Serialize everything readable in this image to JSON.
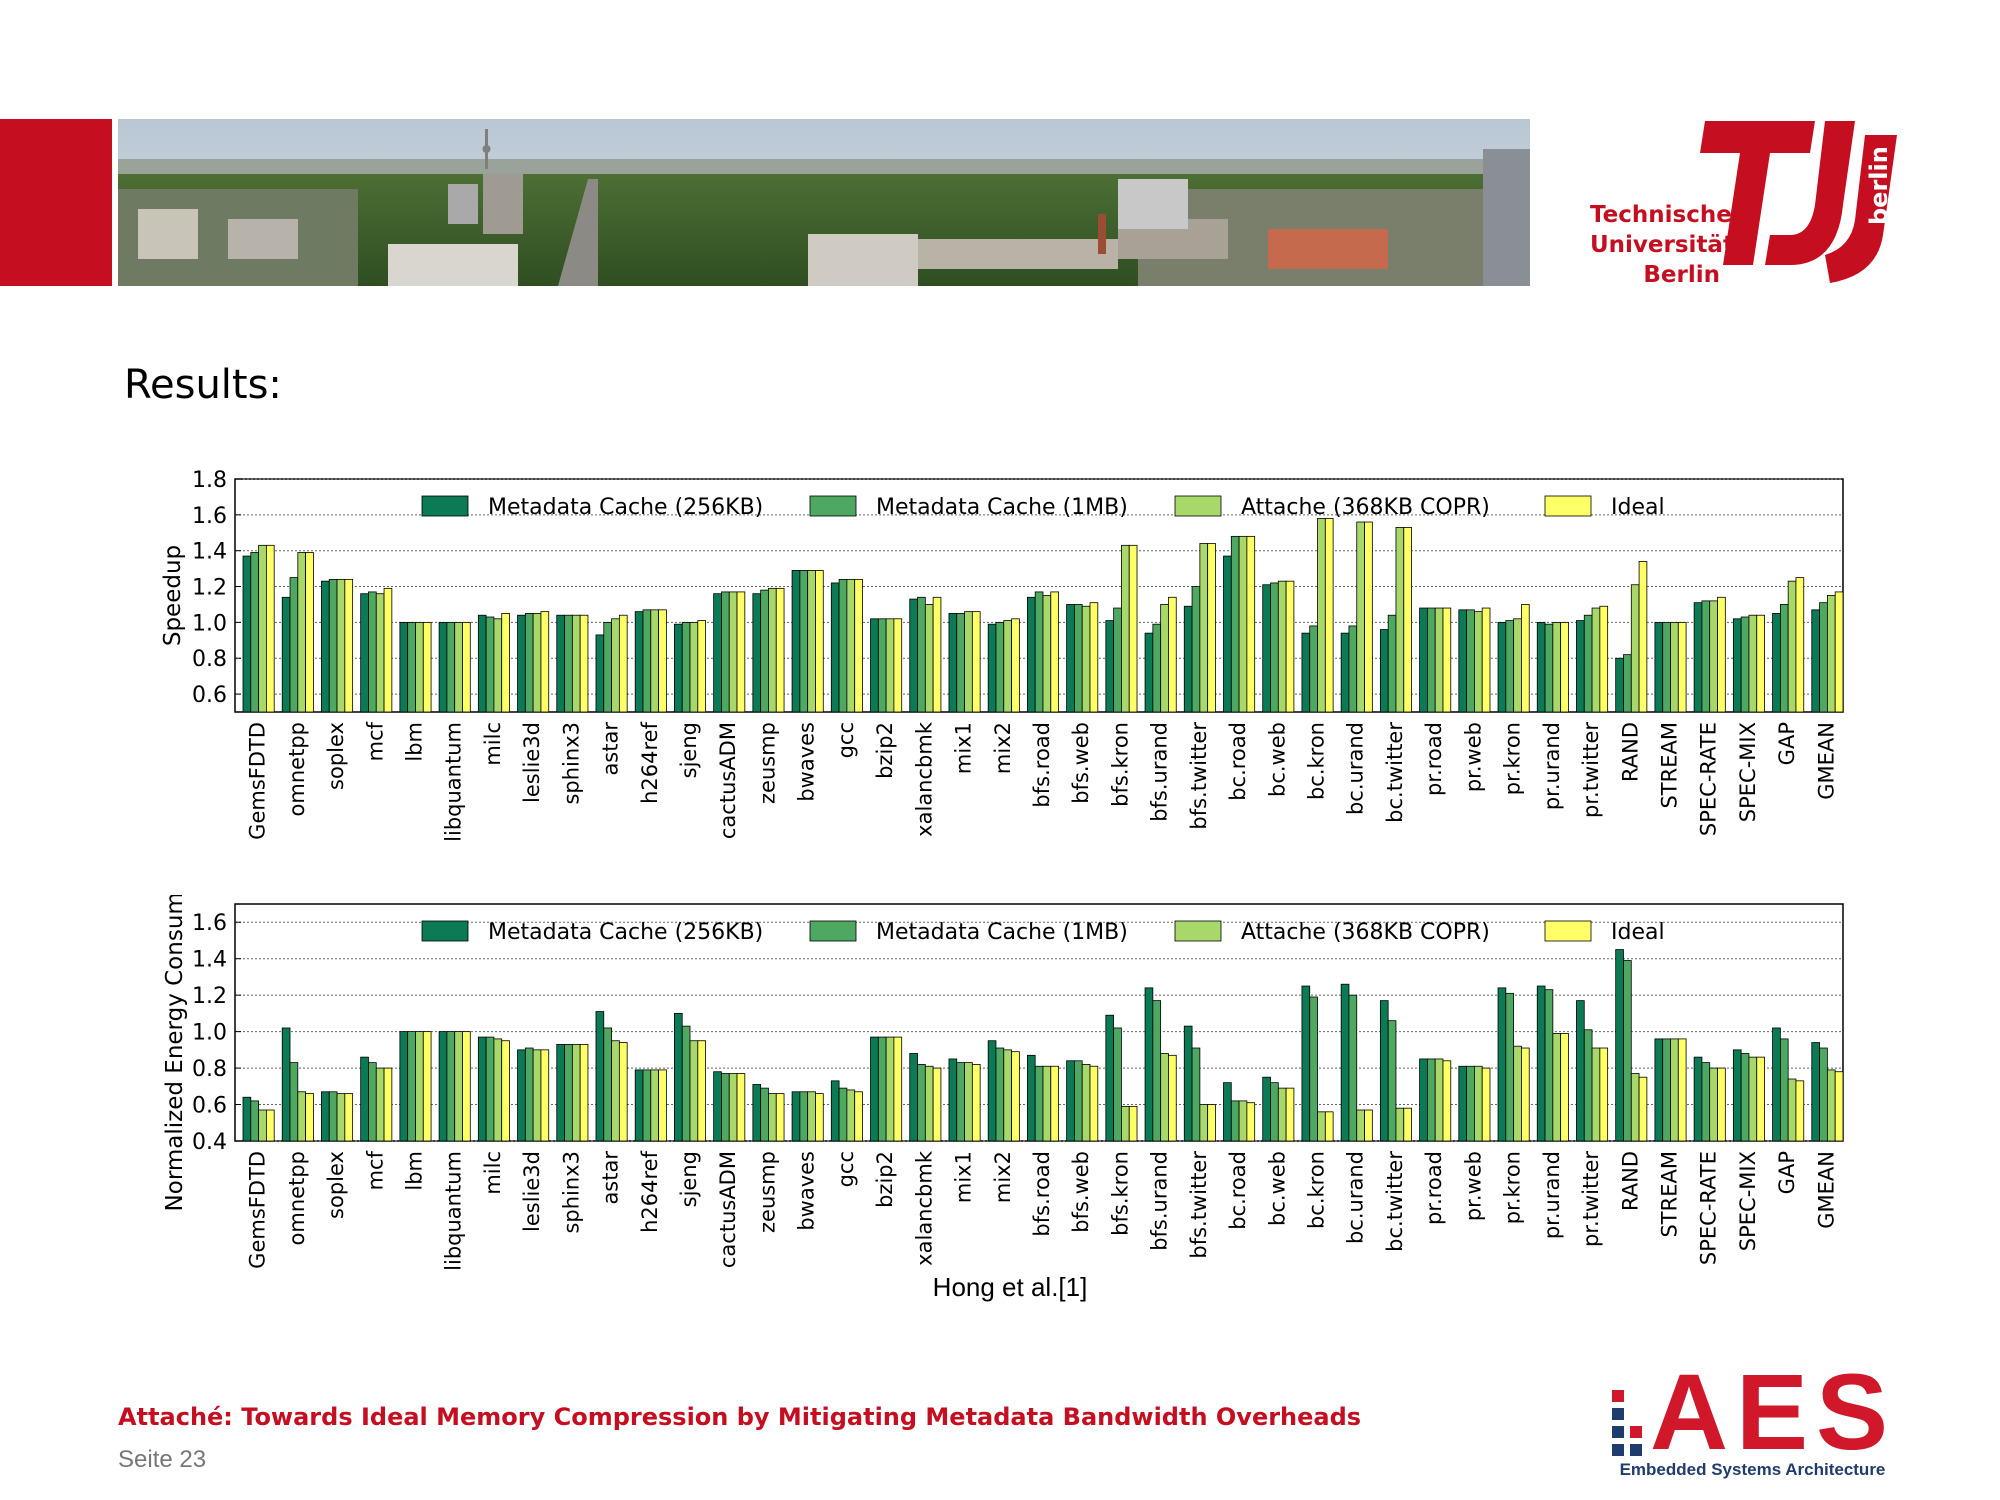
{
  "slide": {
    "title": "Results:",
    "caption": "Hong et al.[1]",
    "footer_title": "Attaché: Towards Ideal Memory Compression by Mitigating Metadata Bandwidth Overheads",
    "footer_page": "Seite 23"
  },
  "logos": {
    "tu_line1": "Technische",
    "tu_line2": "Universität",
    "tu_line3": "Berlin",
    "tu_vertical": "berlin",
    "aes_text": "AES",
    "aes_sub": "Embedded Systems Architecture"
  },
  "colors": {
    "brand_red": "#c50e1f",
    "series": [
      "#0b7a55",
      "#4ea862",
      "#a8d86a",
      "#ffff66"
    ]
  },
  "chart_data": [
    {
      "type": "bar",
      "ylabel": "Speedup",
      "ylim": [
        0.5,
        1.8
      ],
      "yticks": [
        "0.6",
        "0.8",
        "1.0",
        "1.2",
        "1.4",
        "1.6",
        "1.8"
      ],
      "grid": true,
      "legend_position": "top",
      "categories": [
        "GemsFDTD",
        "omnetpp",
        "soplex",
        "mcf",
        "lbm",
        "libquantum",
        "milc",
        "leslie3d",
        "sphinx3",
        "astar",
        "h264ref",
        "sjeng",
        "cactusADM",
        "zeusmp",
        "bwaves",
        "gcc",
        "bzip2",
        "xalancbmk",
        "mix1",
        "mix2",
        "bfs.road",
        "bfs.web",
        "bfs.kron",
        "bfs.urand",
        "bfs.twitter",
        "bc.road",
        "bc.web",
        "bc.kron",
        "bc.urand",
        "bc.twitter",
        "pr.road",
        "pr.web",
        "pr.kron",
        "pr.urand",
        "pr.twitter",
        "RAND",
        "STREAM",
        "SPEC-RATE",
        "SPEC-MIX",
        "GAP",
        "GMEAN"
      ],
      "series": [
        {
          "name": "Metadata Cache (256KB)",
          "values": [
            1.37,
            1.14,
            1.23,
            1.16,
            1.0,
            1.0,
            1.04,
            1.04,
            1.04,
            0.93,
            1.06,
            0.99,
            1.16,
            1.16,
            1.29,
            1.22,
            1.02,
            1.13,
            1.05,
            0.99,
            1.14,
            1.1,
            1.01,
            0.94,
            1.09,
            1.37,
            1.21,
            0.94,
            0.94,
            0.96,
            1.08,
            1.07,
            1.0,
            1.0,
            1.01,
            0.8,
            1.0,
            1.11,
            1.02,
            1.05,
            1.07
          ]
        },
        {
          "name": "Metadata Cache (1MB)",
          "values": [
            1.39,
            1.25,
            1.24,
            1.17,
            1.0,
            1.0,
            1.03,
            1.05,
            1.04,
            1.0,
            1.07,
            1.0,
            1.17,
            1.18,
            1.29,
            1.24,
            1.02,
            1.14,
            1.05,
            1.0,
            1.17,
            1.1,
            1.08,
            0.99,
            1.2,
            1.48,
            1.22,
            0.98,
            0.98,
            1.04,
            1.08,
            1.07,
            1.01,
            0.99,
            1.04,
            0.82,
            1.0,
            1.12,
            1.03,
            1.1,
            1.11
          ]
        },
        {
          "name": "Attache (368KB COPR)",
          "values": [
            1.43,
            1.39,
            1.24,
            1.16,
            1.0,
            1.0,
            1.02,
            1.05,
            1.04,
            1.02,
            1.07,
            1.0,
            1.17,
            1.19,
            1.29,
            1.24,
            1.02,
            1.1,
            1.06,
            1.01,
            1.15,
            1.09,
            1.43,
            1.1,
            1.44,
            1.48,
            1.23,
            1.58,
            1.56,
            1.53,
            1.08,
            1.06,
            1.02,
            1.0,
            1.08,
            1.21,
            1.0,
            1.12,
            1.04,
            1.23,
            1.15
          ]
        },
        {
          "name": "Ideal",
          "values": [
            1.43,
            1.39,
            1.24,
            1.19,
            1.0,
            1.0,
            1.05,
            1.06,
            1.04,
            1.04,
            1.07,
            1.01,
            1.17,
            1.19,
            1.29,
            1.24,
            1.02,
            1.14,
            1.06,
            1.02,
            1.17,
            1.11,
            1.43,
            1.14,
            1.44,
            1.48,
            1.23,
            1.58,
            1.56,
            1.53,
            1.08,
            1.08,
            1.1,
            1.0,
            1.09,
            1.34,
            1.0,
            1.14,
            1.04,
            1.25,
            1.17
          ]
        }
      ]
    },
    {
      "type": "bar",
      "ylabel": "Normalized Energy Consumption",
      "ylim": [
        0.4,
        1.7
      ],
      "yticks": [
        "0.4",
        "0.6",
        "0.8",
        "1.0",
        "1.2",
        "1.4",
        "1.6"
      ],
      "grid": true,
      "legend_position": "top",
      "categories": [
        "GemsFDTD",
        "omnetpp",
        "soplex",
        "mcf",
        "lbm",
        "libquantum",
        "milc",
        "leslie3d",
        "sphinx3",
        "astar",
        "h264ref",
        "sjeng",
        "cactusADM",
        "zeusmp",
        "bwaves",
        "gcc",
        "bzip2",
        "xalancbmk",
        "mix1",
        "mix2",
        "bfs.road",
        "bfs.web",
        "bfs.kron",
        "bfs.urand",
        "bfs.twitter",
        "bc.road",
        "bc.web",
        "bc.kron",
        "bc.urand",
        "bc.twitter",
        "pr.road",
        "pr.web",
        "pr.kron",
        "pr.urand",
        "pr.twitter",
        "RAND",
        "STREAM",
        "SPEC-RATE",
        "SPEC-MIX",
        "GAP",
        "GMEAN"
      ],
      "series": [
        {
          "name": "Metadata Cache (256KB)",
          "values": [
            0.64,
            1.02,
            0.67,
            0.86,
            1.0,
            1.0,
            0.97,
            0.9,
            0.93,
            1.11,
            0.79,
            1.1,
            0.78,
            0.71,
            0.67,
            0.73,
            0.97,
            0.88,
            0.85,
            0.95,
            0.87,
            0.84,
            1.09,
            1.24,
            1.03,
            0.72,
            0.75,
            1.25,
            1.26,
            1.17,
            0.85,
            0.81,
            1.24,
            1.25,
            1.17,
            1.45,
            0.96,
            0.86,
            0.9,
            1.02,
            0.94
          ]
        },
        {
          "name": "Metadata Cache (1MB)",
          "values": [
            0.62,
            0.83,
            0.67,
            0.83,
            1.0,
            1.0,
            0.97,
            0.91,
            0.93,
            1.02,
            0.79,
            1.03,
            0.77,
            0.69,
            0.67,
            0.69,
            0.97,
            0.82,
            0.83,
            0.91,
            0.81,
            0.84,
            1.02,
            1.17,
            0.91,
            0.62,
            0.72,
            1.19,
            1.2,
            1.06,
            0.85,
            0.81,
            1.21,
            1.23,
            1.01,
            1.39,
            0.96,
            0.83,
            0.88,
            0.96,
            0.91
          ]
        },
        {
          "name": "Attache (368KB COPR)",
          "values": [
            0.57,
            0.67,
            0.66,
            0.8,
            1.0,
            1.0,
            0.96,
            0.9,
            0.93,
            0.95,
            0.79,
            0.95,
            0.77,
            0.66,
            0.67,
            0.68,
            0.97,
            0.81,
            0.83,
            0.9,
            0.81,
            0.82,
            0.59,
            0.88,
            0.6,
            0.62,
            0.69,
            0.56,
            0.57,
            0.58,
            0.85,
            0.81,
            0.92,
            0.99,
            0.91,
            0.77,
            0.96,
            0.8,
            0.86,
            0.74,
            0.79
          ]
        },
        {
          "name": "Ideal",
          "values": [
            0.57,
            0.66,
            0.66,
            0.8,
            1.0,
            1.0,
            0.95,
            0.9,
            0.93,
            0.94,
            0.79,
            0.95,
            0.77,
            0.66,
            0.66,
            0.67,
            0.97,
            0.8,
            0.82,
            0.89,
            0.81,
            0.81,
            0.59,
            0.87,
            0.6,
            0.61,
            0.69,
            0.56,
            0.57,
            0.58,
            0.84,
            0.8,
            0.91,
            0.99,
            0.91,
            0.75,
            0.96,
            0.8,
            0.86,
            0.73,
            0.78
          ]
        }
      ]
    }
  ]
}
